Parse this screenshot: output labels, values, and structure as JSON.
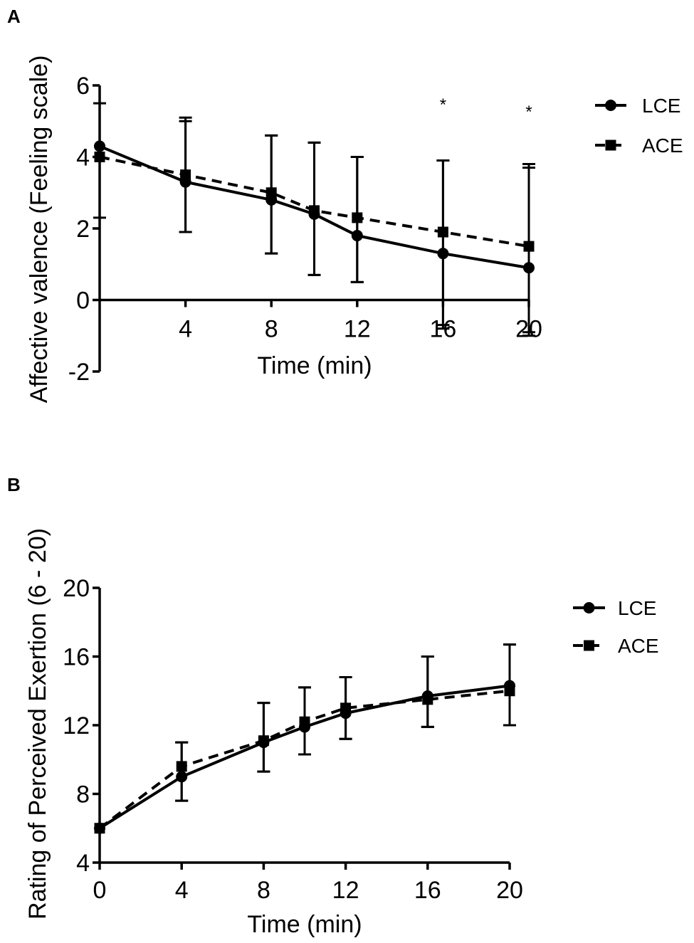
{
  "chart_data": [
    {
      "panel": "A",
      "type": "line",
      "title": "",
      "xlabel": "Time (min)",
      "ylabel": "Affective valence (Feeling scale)",
      "xlim": [
        0,
        20
      ],
      "ylim": [
        -2,
        6
      ],
      "xticks": [
        4,
        8,
        12,
        16,
        20
      ],
      "yticks": [
        -2,
        0,
        2,
        4,
        6
      ],
      "x": [
        0,
        4,
        8,
        10,
        12,
        16,
        20
      ],
      "series": [
        {
          "name": "LCE",
          "marker": "circle",
          "line": "solid",
          "values": [
            4.3,
            3.3,
            2.8,
            2.4,
            1.8,
            1.3,
            0.9
          ],
          "error_upper": [
            4.3,
            5.1,
            4.6,
            4.4,
            4.0,
            3.9,
            3.8
          ],
          "error_lower": [
            4.3,
            1.9,
            1.3,
            0.7,
            0.5,
            -0.7,
            -0.9
          ]
        },
        {
          "name": "ACE",
          "marker": "square",
          "line": "dashed",
          "values": [
            4.0,
            3.5,
            3.0,
            2.5,
            2.3,
            1.9,
            1.5
          ],
          "error_upper": [
            5.5,
            5.0,
            4.6,
            4.4,
            4.0,
            3.9,
            3.7
          ],
          "error_lower": [
            2.3,
            1.9,
            1.3,
            0.7,
            0.5,
            -0.8,
            -1.0
          ]
        }
      ],
      "annotations": [
        {
          "x": 16,
          "y": 5.5,
          "text": "*"
        },
        {
          "x": 20,
          "y": 5.3,
          "text": "*"
        }
      ]
    },
    {
      "panel": "B",
      "type": "line",
      "title": "",
      "xlabel": "Time (min)",
      "ylabel": "Rating of Perceived Exertion (6 - 20)",
      "xlim": [
        0,
        20
      ],
      "ylim": [
        4,
        20
      ],
      "xticks": [
        0,
        4,
        8,
        12,
        16,
        20
      ],
      "yticks": [
        4,
        8,
        12,
        16,
        20
      ],
      "x": [
        0,
        4,
        8,
        10,
        12,
        16,
        20
      ],
      "series": [
        {
          "name": "LCE",
          "marker": "circle",
          "line": "solid",
          "values": [
            6.0,
            9.0,
            11.0,
            11.9,
            12.7,
            13.7,
            14.3
          ],
          "error_upper": [
            6.0,
            11.0,
            13.3,
            14.2,
            14.8,
            16.0,
            16.7
          ],
          "error_lower": [
            6.0,
            7.6,
            9.3,
            10.3,
            11.2,
            11.9,
            12.0
          ]
        },
        {
          "name": "ACE",
          "marker": "square",
          "line": "dashed",
          "values": [
            6.0,
            9.6,
            11.1,
            12.2,
            13.0,
            13.5,
            14.0
          ],
          "error_upper": [
            6.0,
            11.0,
            13.3,
            14.2,
            14.8,
            16.0,
            16.7
          ],
          "error_lower": [
            6.0,
            7.6,
            9.3,
            10.3,
            11.2,
            11.9,
            12.0
          ]
        }
      ],
      "annotations": []
    }
  ]
}
